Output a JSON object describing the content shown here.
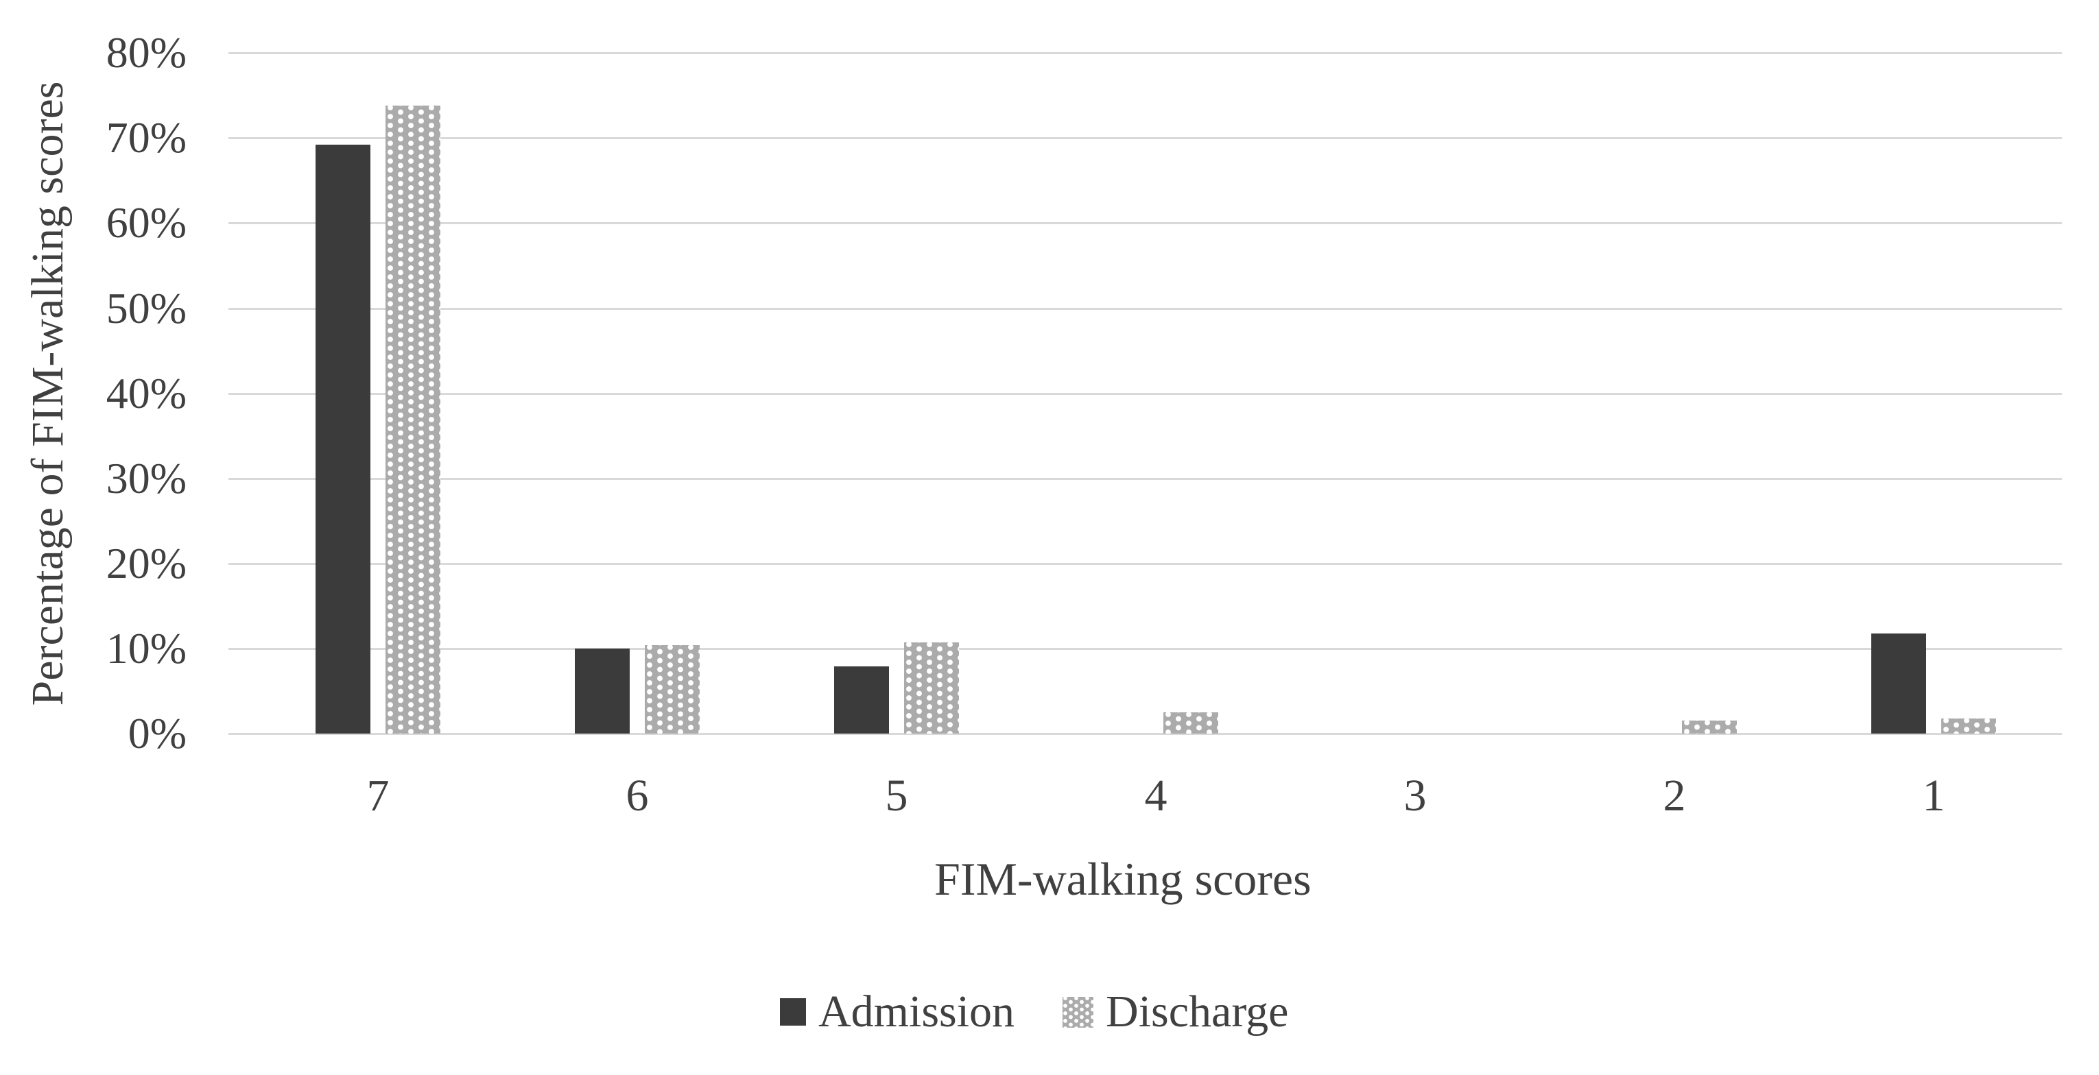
{
  "chart_data": {
    "type": "bar",
    "title": "",
    "categories": [
      "7",
      "6",
      "5",
      "4",
      "3",
      "2",
      "1"
    ],
    "series": [
      {
        "name": "Admission",
        "values": [
          69.2,
          10.0,
          7.9,
          0,
          0,
          0,
          11.8
        ],
        "color": "#3b3b3b",
        "pattern": "solid"
      },
      {
        "name": "Discharge",
        "values": [
          73.8,
          10.4,
          10.7,
          2.5,
          0,
          1.5,
          1.8
        ],
        "color": "#ababab",
        "pattern": "dots",
        "dot_color": "#ffffff"
      }
    ],
    "xlabel": "FIM-walking scores",
    "ylabel": "Percentage of FIM-walking scores",
    "ylim": [
      0,
      80
    ],
    "ytick_step": 10,
    "ytick_labels": [
      "0%",
      "10%",
      "20%",
      "30%",
      "40%",
      "50%",
      "60%",
      "70%",
      "80%"
    ],
    "grid": true,
    "gridline_color": "#d9d9d9",
    "text_color": "#404040",
    "background_color": "#ffffff",
    "legend_position": "bottom"
  }
}
